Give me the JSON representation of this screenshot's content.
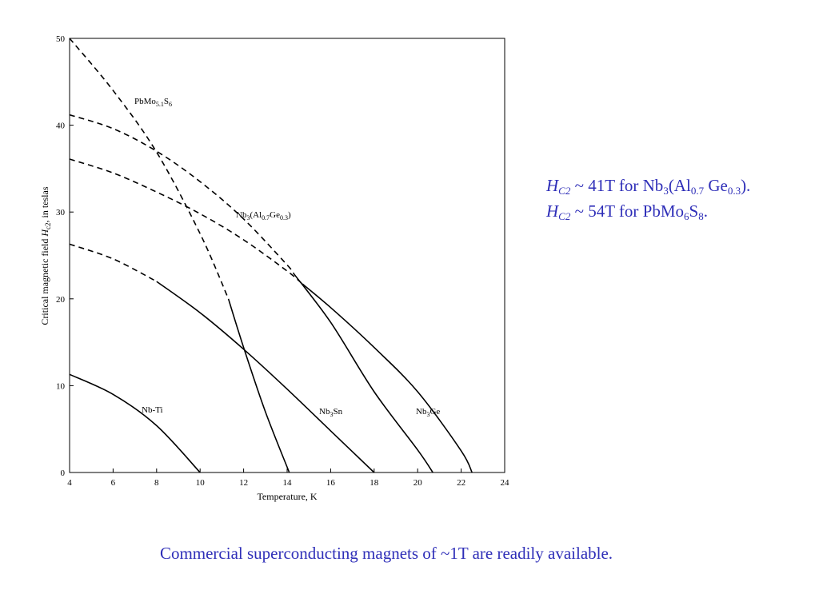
{
  "chart_data": {
    "type": "line",
    "xlabel": "Temperature, K",
    "ylabel": {
      "pre": "Critical magnetic field ",
      "italic": "H",
      "sub": "c2",
      "post": ", in teslas"
    },
    "xlim": [
      4,
      24
    ],
    "ylim": [
      0,
      50
    ],
    "xticks": [
      4,
      6,
      8,
      10,
      12,
      14,
      16,
      18,
      20,
      22,
      24
    ],
    "yticks": [
      0,
      10,
      20,
      30,
      40,
      50
    ],
    "grid": false,
    "legend": "none",
    "series": [
      {
        "name": "Nb-Ti",
        "label_parts": [
          {
            "t": "Nb-Ti"
          }
        ],
        "dashed_until": 4,
        "x": [
          4,
          6,
          8,
          10
        ],
        "y": [
          11.3,
          9.0,
          5.4,
          0
        ]
      },
      {
        "name": "Nb3Sn",
        "label_parts": [
          {
            "t": "Nb"
          },
          {
            "t": "3",
            "sub": true
          },
          {
            "t": "Sn"
          }
        ],
        "dashed_until": 8.0,
        "x": [
          4,
          6,
          8,
          10,
          12,
          14,
          16,
          18
        ],
        "y": [
          26.3,
          24.6,
          22.0,
          18.4,
          14.2,
          9.6,
          4.8,
          0
        ]
      },
      {
        "name": "Nb3Ge",
        "label_parts": [
          {
            "t": "Nb"
          },
          {
            "t": "3",
            "sub": true
          },
          {
            "t": "Ge"
          }
        ],
        "dashed_until": 14.7,
        "x": [
          4,
          6,
          8,
          10,
          12,
          14,
          16,
          18,
          20,
          22,
          22.5
        ],
        "y": [
          36.1,
          34.5,
          32.3,
          29.8,
          26.8,
          23.2,
          19.0,
          14.4,
          9.3,
          2.5,
          0
        ]
      },
      {
        "name": "Nb3(Al0.7Ge0.3)",
        "label_parts": [
          {
            "t": "Nb"
          },
          {
            "t": "3",
            "sub": true
          },
          {
            "t": "(Al"
          },
          {
            "t": "0.7",
            "sub": true
          },
          {
            "t": "Ge"
          },
          {
            "t": "0.3",
            "sub": true
          },
          {
            "t": ")"
          }
        ],
        "dashed_until": 14.3,
        "x": [
          4,
          6,
          8,
          10,
          12,
          14,
          16,
          18,
          20,
          20.7
        ],
        "y": [
          41.2,
          39.6,
          37.0,
          33.5,
          29.2,
          23.9,
          17.3,
          9.3,
          2.6,
          0
        ]
      },
      {
        "name": "PbMo5.1S6",
        "label_parts": [
          {
            "t": "PbMo"
          },
          {
            "t": "5.1",
            "sub": true
          },
          {
            "t": "S"
          },
          {
            "t": "6",
            "sub": true
          }
        ],
        "dashed_until": 11.3,
        "x": [
          4,
          6,
          8,
          10,
          11.3,
          12,
          13,
          14.1
        ],
        "y": [
          50.0,
          44.0,
          36.9,
          27.5,
          20.0,
          14.4,
          7.0,
          0
        ]
      }
    ]
  },
  "notes": [
    {
      "symbol": "H",
      "symbol_sub": "C2",
      "text_parts": [
        {
          "t": " ~ 41T for Nb"
        },
        {
          "t": "3",
          "sub": true
        },
        {
          "t": "(Al"
        },
        {
          "t": "0.7",
          "sub": true
        },
        {
          "t": " Ge"
        },
        {
          "t": "0.3",
          "sub": true
        },
        {
          "t": ")."
        }
      ]
    },
    {
      "symbol": "H",
      "symbol_sub": "C2",
      "text_parts": [
        {
          "t": " ~ 54T for PbMo"
        },
        {
          "t": "6",
          "sub": true
        },
        {
          "t": "S"
        },
        {
          "t": "8",
          "sub": true
        },
        {
          "t": "."
        }
      ]
    }
  ],
  "footer": "Commercial superconducting magnets of ~1T are readily available.",
  "colors": {
    "text_accent": "#2e2eb8",
    "axis": "#000000"
  }
}
